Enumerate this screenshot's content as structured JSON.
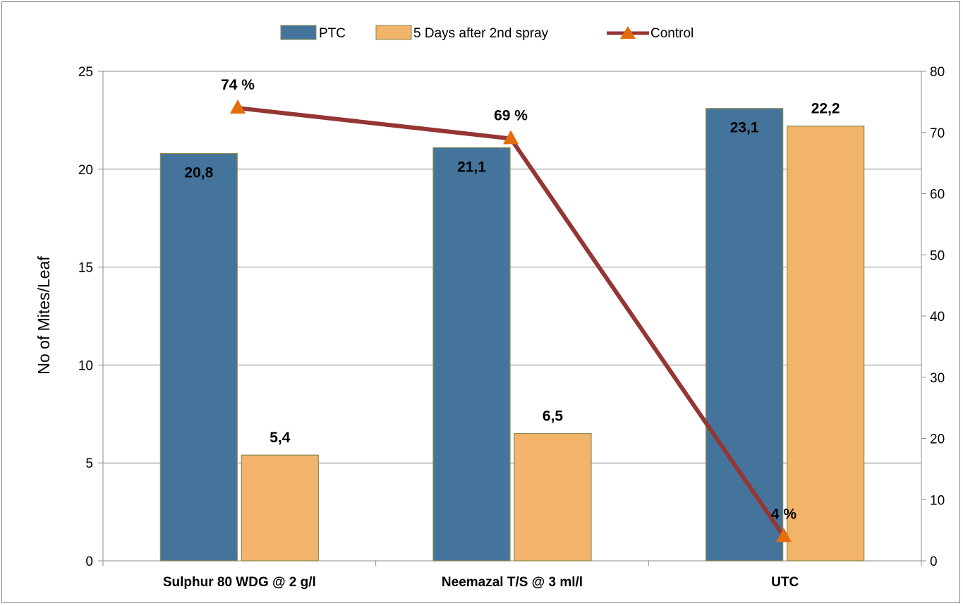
{
  "chart_data": {
    "type": "bar",
    "title": "",
    "xlabel": "",
    "ylabel": "No of Mites/Leaf",
    "y2label": "",
    "categories": [
      "Sulphur 80 WDG @ 2 g/l",
      "Neemazal T/S @ 3 ml/l",
      "UTC"
    ],
    "ylim": [
      0,
      25
    ],
    "yticks": [
      "0",
      "5",
      "10",
      "15",
      "20",
      "25"
    ],
    "y2lim": [
      0,
      80
    ],
    "y2ticks": [
      "0",
      "10",
      "20",
      "30",
      "40",
      "50",
      "60",
      "70",
      "80"
    ],
    "grid": true,
    "legend_position": "top-center",
    "series": [
      {
        "name": "PTC",
        "type": "bar",
        "axis": "left",
        "color": "#44749C",
        "values": [
          20.8,
          21.1,
          23.1
        ],
        "labels": [
          "20,8",
          "21,1",
          "23,1"
        ]
      },
      {
        "name": "5 Days after 2nd spray",
        "type": "bar",
        "axis": "left",
        "color": "#F2B36B",
        "values": [
          5.4,
          6.5,
          22.2
        ],
        "labels": [
          "5,4",
          "6,5",
          "22,2"
        ]
      },
      {
        "name": "Control",
        "type": "line",
        "axis": "right",
        "color": "#943634",
        "marker_color": "#E46C0A",
        "marker": "triangle",
        "values": [
          74,
          69,
          4
        ],
        "labels": [
          "74 %",
          "69 %",
          "4 %"
        ]
      }
    ]
  }
}
